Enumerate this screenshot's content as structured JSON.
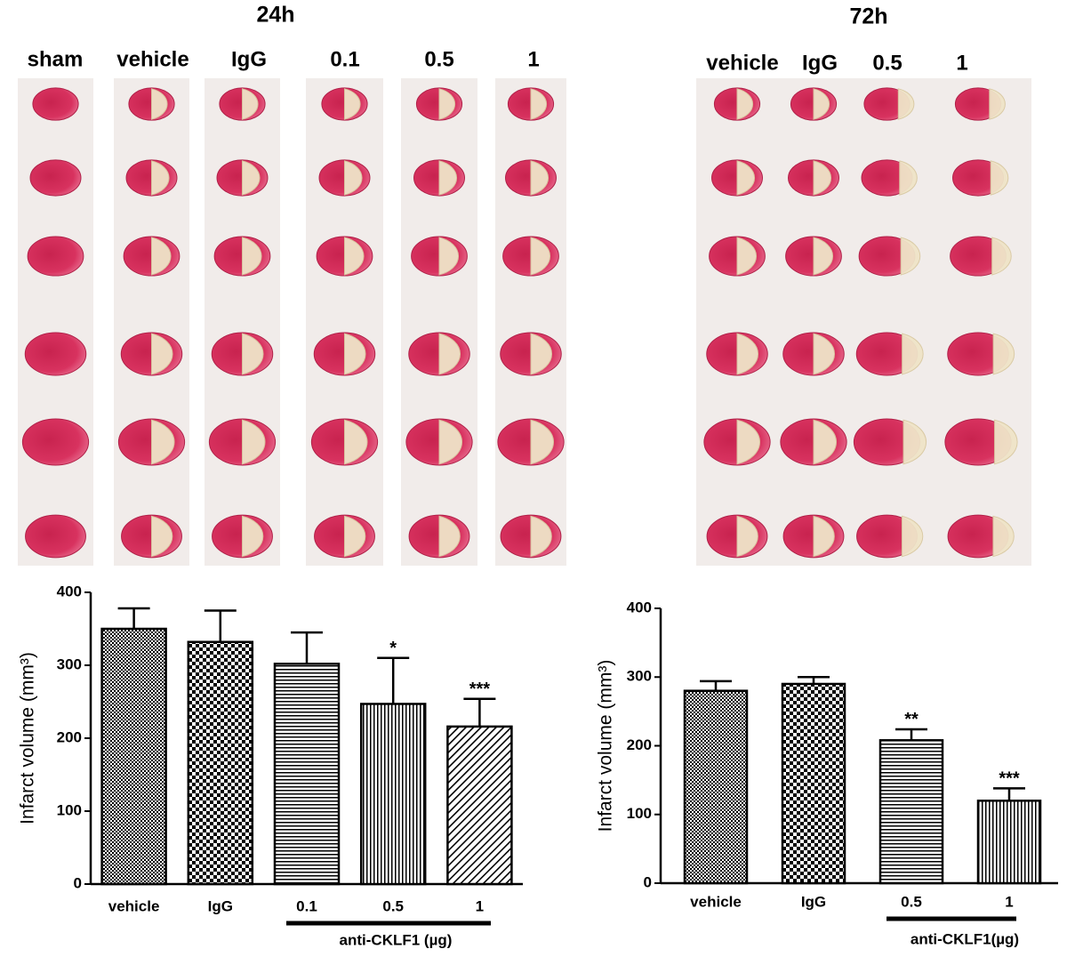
{
  "figure": {
    "panels": [
      {
        "title": "24h",
        "columns": [
          "sham",
          "vehicle",
          "IgG",
          "0.1",
          "0.5",
          "1"
        ]
      },
      {
        "title": "72h",
        "columns": [
          "vehicle",
          "IgG",
          "0.5",
          "1"
        ]
      }
    ]
  },
  "chart_data": [
    {
      "type": "bar",
      "ylabel": "Infarct volume (mm³)",
      "categories": [
        "vehicle",
        "IgG",
        "0.1",
        "0.5",
        "1"
      ],
      "values": [
        350,
        332,
        302,
        247,
        216
      ],
      "errors": [
        28,
        43,
        43,
        63,
        38
      ],
      "significance": [
        null,
        null,
        null,
        "*",
        "***"
      ],
      "patterns": [
        "fine-checker",
        "checker",
        "horizontal",
        "vertical",
        "diagonal"
      ],
      "group_label": "anti-CKLF1 (µg)",
      "color": "#000000",
      "ylim": [
        0,
        400
      ],
      "yticks": [
        0,
        100,
        200,
        300,
        400
      ]
    },
    {
      "type": "bar",
      "ylabel": "Infarct volume (mm³)",
      "categories": [
        "vehicle",
        "IgG",
        "0.5",
        "1"
      ],
      "values": [
        280,
        290,
        208,
        120
      ],
      "errors": [
        14,
        10,
        16,
        18
      ],
      "significance": [
        null,
        null,
        "**",
        "***"
      ],
      "patterns": [
        "fine-checker",
        "checker",
        "horizontal",
        "vertical"
      ],
      "group_label": "anti-CKLF1(µg)",
      "color": "#000000",
      "ylim": [
        0,
        400
      ],
      "yticks": [
        0,
        100,
        200,
        300,
        400
      ]
    }
  ]
}
